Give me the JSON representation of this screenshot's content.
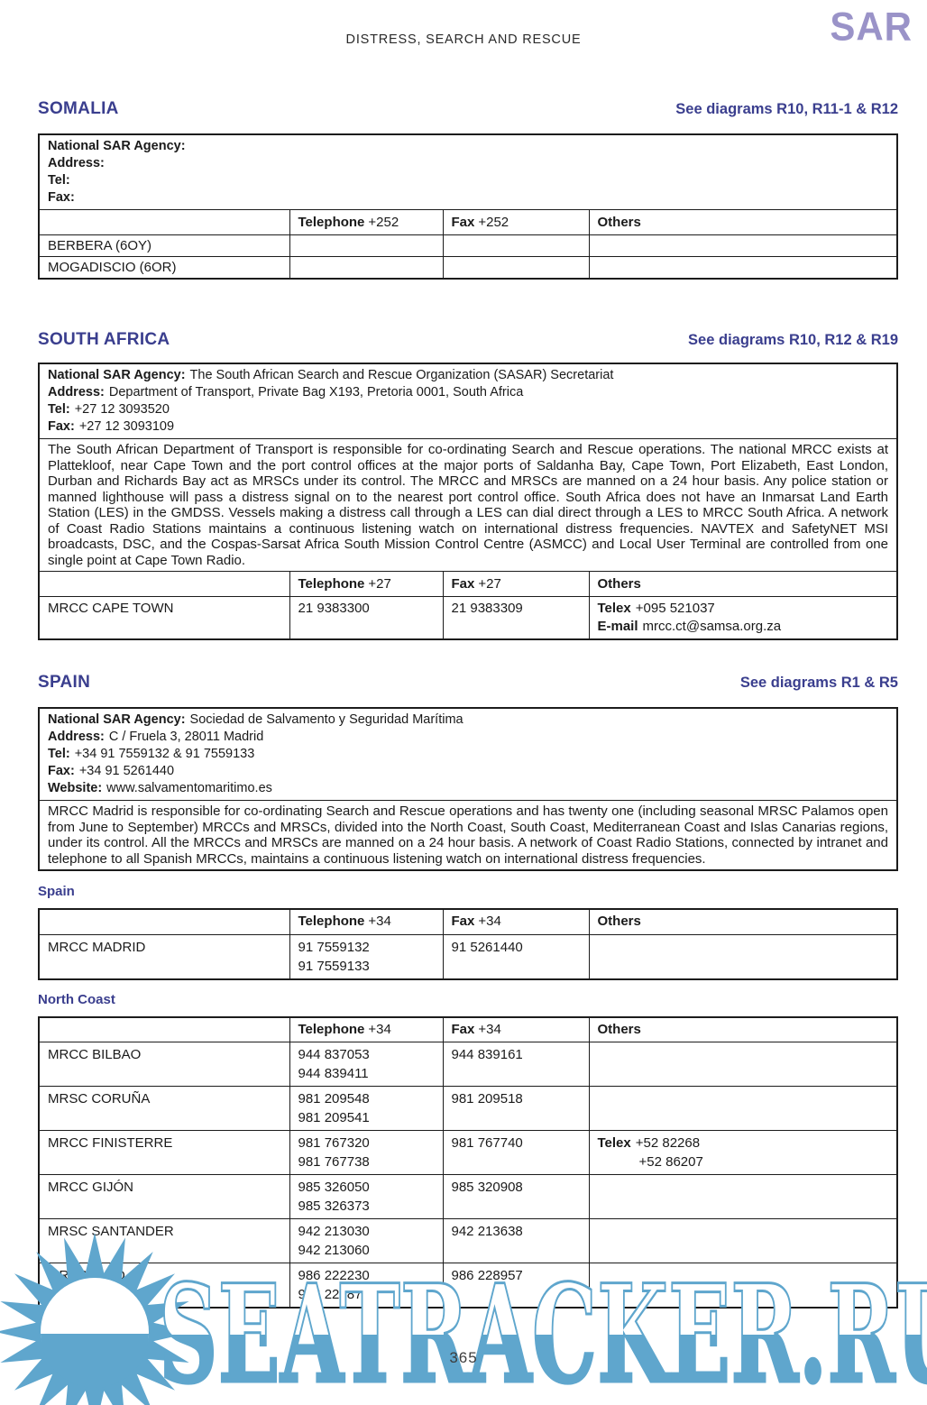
{
  "header": {
    "title": "DISTRESS, SEARCH AND RESCUE",
    "logo": "SAR"
  },
  "footer": {
    "page_number": "365",
    "watermark": "SEATRACKER.RU"
  },
  "colors": {
    "heading_blue": "#3a3e8e",
    "logo_purple": "#9a93c8",
    "watermark_blue": "#5fa6cd",
    "border_black": "#1c1c1c"
  },
  "somalia": {
    "heading": "SOMALIA",
    "diagrams": "See diagrams R10, R11-1 & R12",
    "agency": {
      "lines": [
        {
          "label": "National SAR Agency:",
          "value": ""
        },
        {
          "label": "Address:",
          "value": ""
        },
        {
          "label": "Tel:",
          "value": ""
        },
        {
          "label": "Fax:",
          "value": ""
        }
      ]
    },
    "table": {
      "header": {
        "tel_label": "Telephone",
        "tel_code": "+252",
        "fax_label": "Fax",
        "fax_code": "+252",
        "others": "Others"
      },
      "rows": [
        {
          "name": "BERBERA (6OY)",
          "telephone": "",
          "fax": "",
          "others": ""
        },
        {
          "name": "MOGADISCIO (6OR)",
          "telephone": "",
          "fax": "",
          "others": ""
        }
      ]
    }
  },
  "south_africa": {
    "heading": "SOUTH  AFRICA",
    "diagrams": "See diagrams R10, R12 & R19",
    "agency": {
      "lines": [
        {
          "label": "National SAR Agency:",
          "value": "The South African Search and Rescue Organization (SASAR) Secretariat"
        },
        {
          "label": "Address:",
          "value": "Department of Transport, Private Bag X193, Pretoria 0001, South Africa"
        },
        {
          "label": "Tel:",
          "value": "+27 12 3093520"
        },
        {
          "label": "Fax:",
          "value": "+27 12 3093109"
        }
      ]
    },
    "description": "The South African Department of Transport is responsible for co-ordinating Search and Rescue operations. The national MRCC exists at Plattekloof, near Cape Town and the port control offices at the major ports of Saldanha Bay, Cape Town, Port Elizabeth, East London, Durban and Richards Bay act as MRSCs under its control. The MRCC and MRSCs are manned on a 24 hour basis. Any police station or manned lighthouse will pass a distress signal on to the nearest port control office. South Africa does not have an Inmarsat Land Earth Station (LES) in the GMDSS. Vessels making a distress call through a LES can dial direct through a LES to MRCC South Africa. A network of Coast Radio Stations maintains a continuous listening watch on international distress frequencies. NAVTEX and SafetyNET MSI broadcasts, DSC, and the Cospas-Sarsat Africa South Mission Control Centre (ASMCC) and Local User Terminal are controlled from one single point at Cape Town Radio.",
    "table": {
      "header": {
        "tel_label": "Telephone",
        "tel_code": "+27",
        "fax_label": "Fax",
        "fax_code": "+27",
        "others": "Others"
      },
      "rows": [
        {
          "name": "MRCC CAPE TOWN",
          "telephone": "21 9383300",
          "fax": "21 9383309",
          "others": [
            {
              "label": "Telex",
              "value": "+095 521037"
            },
            {
              "label": "E-mail",
              "value": "mrcc.ct@samsa.org.za"
            }
          ]
        }
      ]
    }
  },
  "spain": {
    "heading": "SPAIN",
    "diagrams": "See diagrams R1 & R5",
    "agency": {
      "lines": [
        {
          "label": "National SAR Agency:",
          "value": "Sociedad de Salvamento y Seguridad Marítima"
        },
        {
          "label": "Address:",
          "value": "C / Fruela 3, 28011 Madrid"
        },
        {
          "label": "Tel:",
          "value": "+34 91 7559132 & 91 7559133"
        },
        {
          "label": "Fax:",
          "value": "+34 91 5261440"
        },
        {
          "label": "Website:",
          "value": "www.salvamentomaritimo.es"
        }
      ]
    },
    "description": "MRCC Madrid is responsible for co-ordinating Search and Rescue operations and has twenty one (including seasonal MRSC Palamos open from June to September) MRCCs and MRSCs, divided into the North Coast, South Coast, Mediterranean Coast and Islas Canarias regions, under its control. All the MRCCs and MRSCs are manned on a 24 hour basis. A network of Coast Radio Stations, connected by intranet and telephone to all Spanish MRCCs, maintains a continuous listening watch on international distress frequencies.",
    "sub_spain": {
      "heading": "Spain",
      "table": {
        "header": {
          "tel_label": "Telephone",
          "tel_code": "+34",
          "fax_label": "Fax",
          "fax_code": "+34",
          "others": "Others"
        },
        "rows": [
          {
            "name": "MRCC MADRID",
            "telephone": [
              "91 7559132",
              "91 7559133"
            ],
            "fax": [
              "91 5261440"
            ]
          }
        ]
      }
    },
    "north_coast": {
      "heading": "North Coast",
      "table": {
        "header": {
          "tel_label": "Telephone",
          "tel_code": "+34",
          "fax_label": "Fax",
          "fax_code": "+34",
          "others": "Others"
        },
        "rows": [
          {
            "name": "MRCC BILBAO",
            "telephone": [
              "944 837053",
              "944 839411"
            ],
            "fax": [
              "944 839161"
            ]
          },
          {
            "name": "MRSC CORUÑA",
            "telephone": [
              "981 209548",
              "981 209541"
            ],
            "fax": [
              "981 209518"
            ]
          },
          {
            "name": "MRCC FINISTERRE",
            "telephone": [
              "981 767320",
              "981 767738"
            ],
            "fax": [
              "981 767740"
            ],
            "others": [
              {
                "label": "Telex",
                "value": "+52 82268"
              },
              {
                "label": "",
                "value": "+52 86207"
              }
            ]
          },
          {
            "name": "MRCC GIJÓN",
            "telephone": [
              "985 326050",
              "985 326373"
            ],
            "fax": [
              "985 320908"
            ]
          },
          {
            "name": "MRSC SANTANDER",
            "telephone": [
              "942 213030",
              "942 213060"
            ],
            "fax": [
              "942 213638"
            ]
          },
          {
            "name": "MRSC VIGO",
            "telephone": [
              "986 222230",
              "986 228874"
            ],
            "fax": [
              "986 228957"
            ]
          }
        ]
      }
    }
  }
}
